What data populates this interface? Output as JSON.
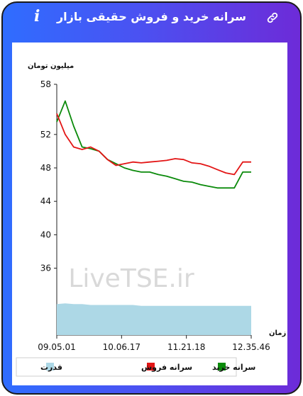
{
  "header": {
    "title": "سرانه خرید و فروش حقیقی بازار",
    "info_glyph": "i",
    "info_icon": "info-icon",
    "link_icon": "link-icon"
  },
  "watermark": "LiveTSE.ir",
  "colors": {
    "gradient_start": "#2f6dff",
    "gradient_end": "#6d2bd8",
    "buy": "#0a8a0a",
    "sell": "#e31515",
    "power": "#add8e6"
  },
  "chart_data": {
    "type": "line",
    "ylabel": "میلیون تومان",
    "xlabel": "زمان",
    "ylim": [
      28,
      58
    ],
    "yticks": [
      36,
      40,
      44,
      48,
      52,
      58
    ],
    "xticks": [
      "09.05.01",
      "10.06.17",
      "11.21.18",
      "12.35.46"
    ],
    "x": [
      "09.05.01",
      "09.10",
      "09.20",
      "09.30",
      "09.40",
      "09.50",
      "10.00",
      "10.06.17",
      "10.15",
      "10.25",
      "10.35",
      "10.45",
      "10.55",
      "11.05",
      "11.15",
      "11.21.18",
      "11.30",
      "11.40",
      "11.50",
      "12.00",
      "12.10",
      "12.20",
      "12.30",
      "12.35.46"
    ],
    "series": [
      {
        "name": "سرانه خرید",
        "color": "#0a8a0a",
        "values": [
          53.5,
          56.0,
          53.0,
          50.5,
          50.3,
          50.0,
          49.0,
          48.5,
          48.0,
          47.7,
          47.5,
          47.5,
          47.2,
          47.0,
          46.7,
          46.4,
          46.3,
          46.0,
          45.8,
          45.6,
          45.6,
          45.6,
          47.5,
          47.5
        ]
      },
      {
        "name": "سرانه فروش",
        "color": "#e31515",
        "values": [
          54.5,
          52.0,
          50.5,
          50.2,
          50.5,
          50.0,
          49.0,
          48.3,
          48.5,
          48.7,
          48.6,
          48.7,
          48.8,
          48.9,
          49.1,
          49.0,
          48.6,
          48.5,
          48.2,
          47.8,
          47.4,
          47.2,
          48.7,
          48.7
        ]
      },
      {
        "name": "قدرت",
        "color": "#add8e6",
        "values": [
          31.7,
          31.8,
          31.7,
          31.7,
          31.6,
          31.6,
          31.6,
          31.6,
          31.6,
          31.6,
          31.5,
          31.5,
          31.5,
          31.5,
          31.5,
          31.5,
          31.5,
          31.5,
          31.5,
          31.5,
          31.5,
          31.5,
          31.5,
          31.5
        ]
      }
    ],
    "legend": "bottom"
  }
}
